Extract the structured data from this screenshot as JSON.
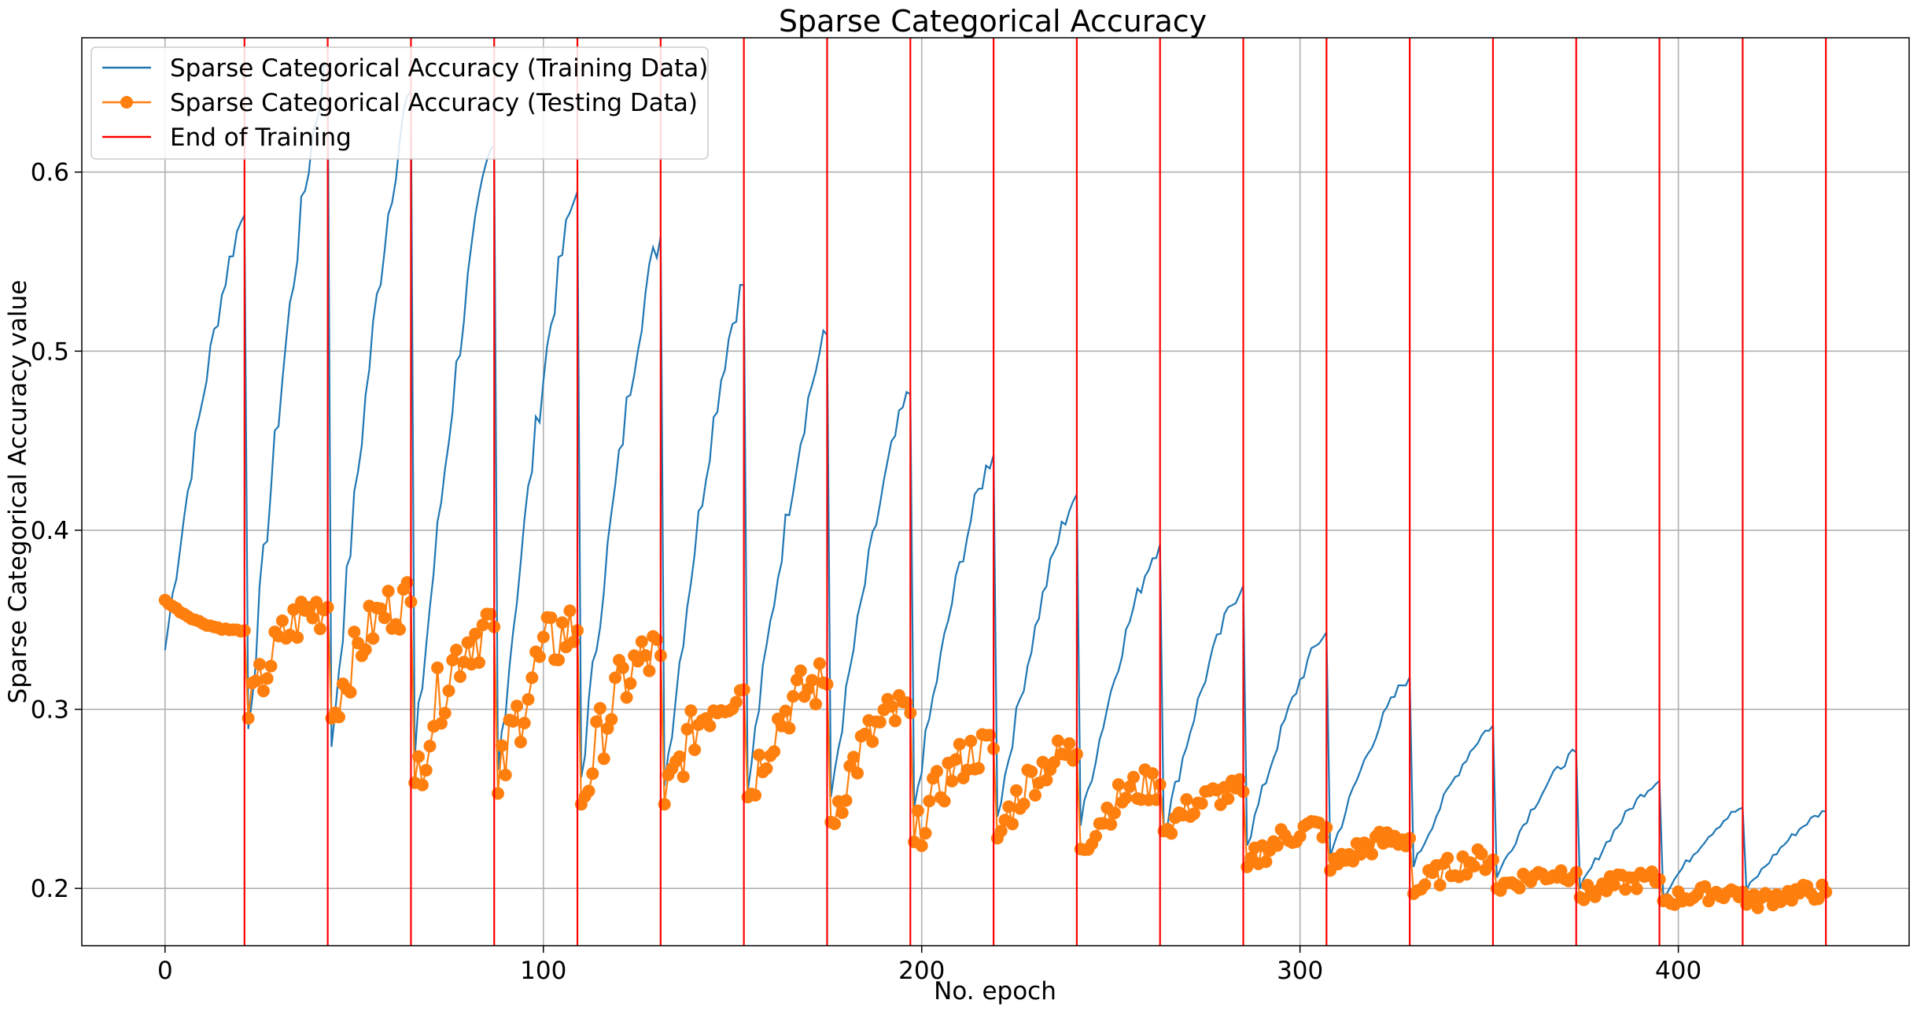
{
  "chart_data": {
    "type": "line",
    "title": "Sparse Categorical Accuracy",
    "xlabel": "No. epoch",
    "ylabel": "Sparse Categorical Accuracy value",
    "xlim": [
      -22,
      461
    ],
    "ylim": [
      0.168,
      0.675
    ],
    "xticks": [
      0,
      100,
      200,
      300,
      400
    ],
    "yticks": [
      0.2,
      0.3,
      0.4,
      0.5,
      0.6
    ],
    "ytick_labels": [
      "0.2",
      "0.3",
      "0.4",
      "0.5",
      "0.6"
    ],
    "grid": true,
    "legend_position": "top-left",
    "epochs_per_block": 22,
    "series": [
      {
        "name": "Sparse Categorical Accuracy (Training Data)",
        "color": "#1f77b4",
        "marker": "none",
        "block_start": [
          0.333,
          0.289,
          0.279,
          0.272,
          0.266,
          0.262,
          0.257,
          0.254,
          0.251,
          0.245,
          0.24,
          0.235,
          0.23,
          0.224,
          0.218,
          0.212,
          0.206,
          0.2,
          0.196,
          0.199
        ],
        "block_end": [
          0.576,
          0.659,
          0.645,
          0.615,
          0.589,
          0.564,
          0.537,
          0.509,
          0.476,
          0.442,
          0.42,
          0.392,
          0.369,
          0.343,
          0.318,
          0.291,
          0.276,
          0.26,
          0.245,
          0.243
        ]
      },
      {
        "name": "Sparse Categorical Accuracy (Testing Data)",
        "color": "#ff7f0e",
        "marker": "circle",
        "block_start": [
          0.361,
          0.295,
          0.295,
          0.259,
          0.253,
          0.247,
          0.247,
          0.251,
          0.237,
          0.226,
          0.228,
          0.222,
          0.232,
          0.212,
          0.21,
          0.197,
          0.2,
          0.195,
          0.193,
          0.191
        ],
        "block_end": [
          0.344,
          0.357,
          0.36,
          0.346,
          0.344,
          0.33,
          0.311,
          0.314,
          0.298,
          0.278,
          0.275,
          0.258,
          0.254,
          0.234,
          0.228,
          0.216,
          0.209,
          0.205,
          0.198,
          0.198
        ]
      }
    ],
    "vlines": {
      "name": "End of Training",
      "color": "#ff0000",
      "x": [
        21,
        43,
        65,
        87,
        109,
        131,
        153,
        175,
        197,
        219,
        241,
        263,
        285,
        307,
        329,
        351,
        373,
        395,
        417,
        439
      ]
    }
  }
}
